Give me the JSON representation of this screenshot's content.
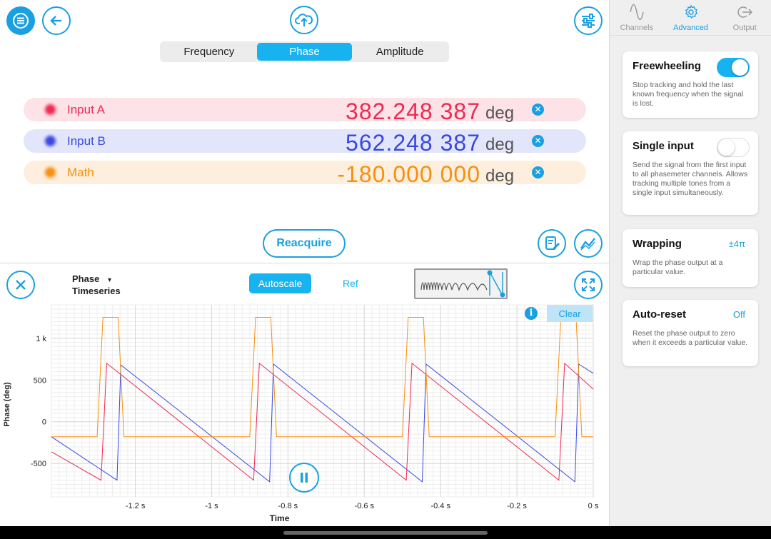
{
  "colors": {
    "accent": "#17b2f0",
    "inputA": "#ee2a52",
    "inputB": "#3847e0",
    "math": "#f5900e"
  },
  "tabs": [
    {
      "label": "Frequency",
      "active": false
    },
    {
      "label": "Phase",
      "active": true
    },
    {
      "label": "Amplitude",
      "active": false
    }
  ],
  "channels": [
    {
      "name": "Input A",
      "value": "382.248 387",
      "unit": "deg",
      "close": "✕"
    },
    {
      "name": "Input B",
      "value": "562.248 387",
      "unit": "deg",
      "close": "✕"
    },
    {
      "name": "Math",
      "value": "-180.000 000",
      "unit": "deg",
      "close": "✕"
    }
  ],
  "reacquire_label": "Reacquire",
  "plot_toolbar": {
    "selector_line1": "Phase",
    "selector_caret": "▾",
    "selector_line2": "Timeseries",
    "autoscale_label": "Autoscale",
    "ref_label": "Ref",
    "clear_label": "Clear",
    "info_glyph": "i"
  },
  "chart_data": {
    "type": "line",
    "xlabel": "Time",
    "ylabel": "Phase (deg)",
    "xlim": [
      -1.42,
      0.0
    ],
    "ylim": [
      -900,
      1400
    ],
    "x_ticks": [
      -1.2,
      -1.0,
      -0.8,
      -0.6,
      -0.4,
      -0.2,
      0.0
    ],
    "x_tick_labels": [
      "-1.2 s",
      "-1 s",
      "-0.8 s",
      "-0.6 s",
      "-0.4 s",
      "-0.2 s",
      "0 s"
    ],
    "y_ticks": [
      1000,
      500,
      0,
      -500
    ],
    "y_tick_labels": [
      "1 k",
      "500",
      "0",
      "-500"
    ],
    "grid": true,
    "series": [
      {
        "color": "#ee2a52",
        "x": [
          -1.42,
          -1.29,
          -1.275,
          -0.89,
          -0.875,
          -0.49,
          -0.475,
          -0.09,
          -0.075,
          0.0
        ],
        "y": [
          -360,
          -700,
          700,
          -700,
          700,
          -700,
          700,
          -700,
          700,
          390
        ]
      },
      {
        "color": "#3847e0",
        "x": [
          -1.42,
          -1.248,
          -1.238,
          -0.848,
          -0.838,
          -0.448,
          -0.438,
          -0.048,
          -0.038,
          0.0
        ],
        "y": [
          -180,
          -700,
          680,
          -720,
          690,
          -720,
          690,
          -720,
          690,
          580
        ]
      },
      {
        "color": "#f5900e",
        "x": [
          -1.42,
          -1.3,
          -1.285,
          -1.245,
          -1.23,
          -0.9,
          -0.885,
          -0.845,
          -0.83,
          -0.5,
          -0.485,
          -0.445,
          -0.43,
          -0.1,
          -0.085,
          -0.045,
          -0.03,
          0.0
        ],
        "y": [
          -180,
          -180,
          1250,
          1250,
          -180,
          -180,
          1250,
          1250,
          -180,
          -180,
          1250,
          1250,
          -180,
          -180,
          1250,
          1250,
          -180,
          -180
        ]
      }
    ]
  },
  "sidebar": {
    "tabs": [
      {
        "label": "Channels",
        "icon": "sine-wave-icon",
        "active": false
      },
      {
        "label": "Advanced",
        "icon": "gear-icon",
        "active": true
      },
      {
        "label": "Output",
        "icon": "output-icon",
        "active": false
      }
    ],
    "cards": [
      {
        "title": "Freewheeling",
        "control": "toggle",
        "on": true,
        "desc": "Stop tracking and hold the last known frequency when the signal is lost."
      },
      {
        "title": "Single input",
        "control": "toggle",
        "on": false,
        "desc": "Send the signal from the first input to all phasemeter channels. Allows tracking multiple tones from a single input simultaneously."
      },
      {
        "title": "Wrapping",
        "control": "value",
        "value": "±4π",
        "desc": "Wrap the phase output at a particular value."
      },
      {
        "title": "Auto-reset",
        "control": "value",
        "value": "Off",
        "desc": "Reset the phase output to zero when it exceeds a particular value."
      }
    ]
  }
}
